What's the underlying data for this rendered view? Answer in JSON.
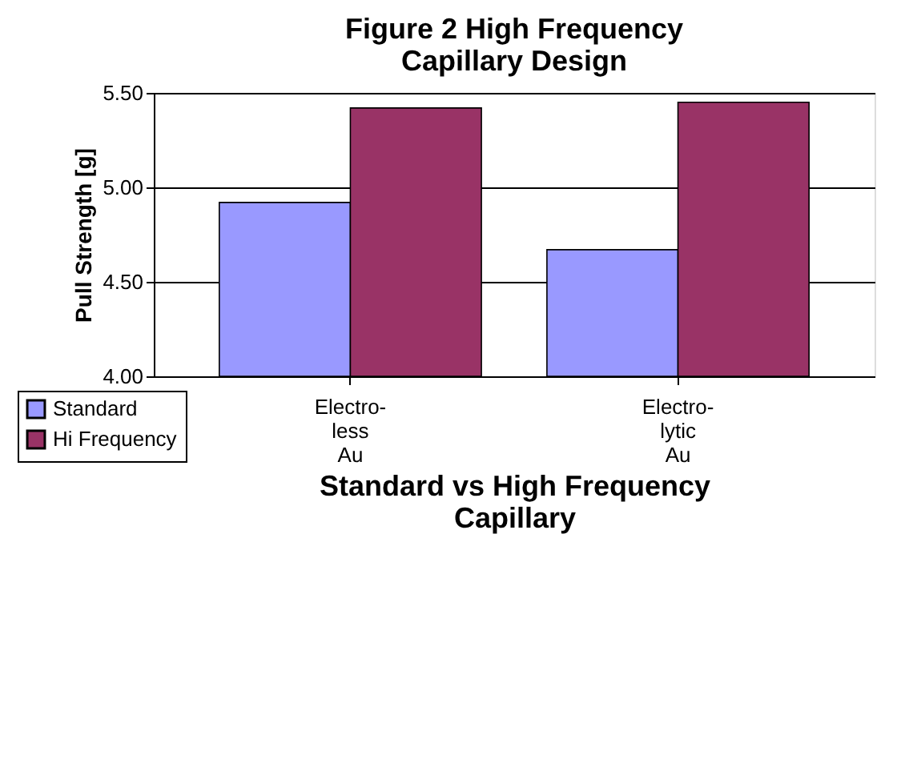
{
  "chart_data": {
    "type": "bar",
    "title": "Figure 2 High Frequency\nCapillary Design",
    "xlabel": "Standard vs High Frequency\nCapillary",
    "ylabel": "Pull Strength [g]",
    "categories": [
      "Electro-\nless\nAu",
      "Electro-\nlytic\nAu"
    ],
    "series": [
      {
        "name": "Standard",
        "color": "#9999ff",
        "values": [
          4.92,
          4.67
        ]
      },
      {
        "name": "Hi Frequency",
        "color": "#993366",
        "values": [
          5.42,
          5.45
        ]
      }
    ],
    "ylim": [
      4.0,
      5.5
    ],
    "yticks": [
      {
        "value": 4.0,
        "label": "4.00"
      },
      {
        "value": 4.5,
        "label": "4.50"
      },
      {
        "value": 5.0,
        "label": "5.00"
      },
      {
        "value": 5.5,
        "label": "5.50"
      }
    ],
    "grid": "y",
    "legend": "bottom left"
  }
}
